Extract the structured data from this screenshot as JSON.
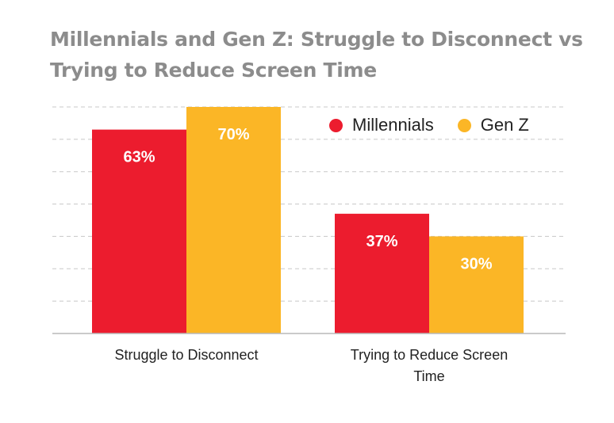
{
  "chart_data": {
    "type": "bar",
    "title": "Millennials and Gen Z: Struggle to Disconnect vs Trying to Reduce Screen Time",
    "categories": [
      "Struggle to Disconnect",
      "Trying to Reduce Screen Time"
    ],
    "series": [
      {
        "name": "Millennials",
        "values": [
          63,
          37
        ],
        "labels": [
          "63%",
          "37%"
        ],
        "color": "#ec1c2e"
      },
      {
        "name": "Gen Z",
        "values": [
          70,
          30
        ],
        "labels": [
          "70%",
          "30%"
        ],
        "color": "#fbb626"
      }
    ],
    "ylim": [
      0,
      70
    ],
    "grid": true,
    "legend_position": "top-right",
    "xlabel": "",
    "ylabel": ""
  }
}
